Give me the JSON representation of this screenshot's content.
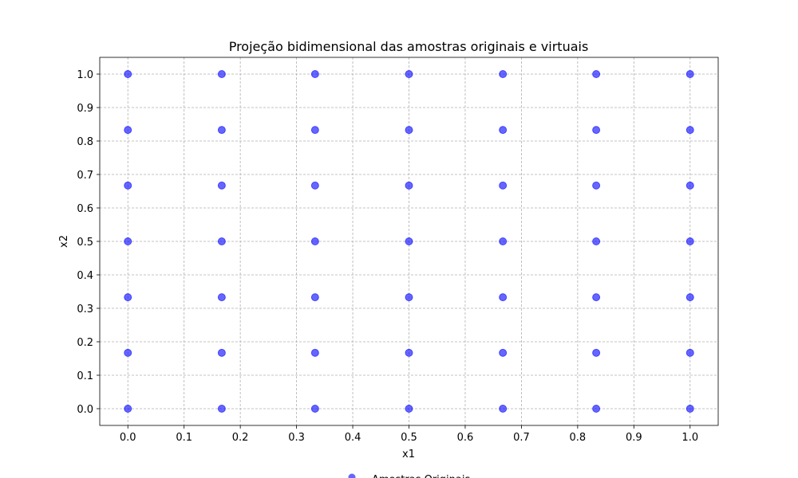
{
  "chart_data": {
    "type": "scatter",
    "title": "Projeção bidimensional das amostras originais e virtuais",
    "x_label": "x1",
    "y_label": "x2",
    "series": [
      {
        "name": "Amostras Originais",
        "color": "#0000ff",
        "x": [
          0,
          0,
          0,
          0,
          0,
          0,
          0,
          0.167,
          0.167,
          0.167,
          0.167,
          0.167,
          0.167,
          0.167,
          0.333,
          0.333,
          0.333,
          0.333,
          0.333,
          0.333,
          0.333,
          0.5,
          0.5,
          0.5,
          0.5,
          0.5,
          0.5,
          0.5,
          0.667,
          0.667,
          0.667,
          0.667,
          0.667,
          0.667,
          0.667,
          0.833,
          0.833,
          0.833,
          0.833,
          0.833,
          0.833,
          0.833,
          1,
          1,
          1,
          1,
          1,
          1,
          1
        ],
        "values": [
          0,
          0.167,
          0.333,
          0.5,
          0.667,
          0.833,
          1,
          0,
          0.167,
          0.333,
          0.5,
          0.667,
          0.833,
          1,
          0,
          0.167,
          0.333,
          0.5,
          0.667,
          0.833,
          1,
          0,
          0.167,
          0.333,
          0.5,
          0.667,
          0.833,
          1,
          0,
          0.167,
          0.333,
          0.5,
          0.667,
          0.833,
          1,
          0,
          0.167,
          0.333,
          0.5,
          0.667,
          0.833,
          1,
          0,
          0.167,
          0.333,
          0.5,
          0.667,
          0.833,
          1
        ]
      }
    ],
    "xlim": [
      -0.05,
      1.05
    ],
    "ylim": [
      -0.05,
      1.05
    ],
    "xticks": [
      {
        "value": 0,
        "label": "0.0"
      },
      0.1,
      0.2,
      0.3,
      0.4,
      0.5,
      0.6,
      0.7,
      0.8,
      0.9,
      {
        "value": 1,
        "label": "1.0"
      }
    ],
    "yticks": [
      {
        "value": 0,
        "label": "0.0"
      },
      0.1,
      0.2,
      0.3,
      0.4,
      0.5,
      0.6,
      0.7,
      0.8,
      0.9,
      {
        "value": 1,
        "label": "1.0"
      }
    ],
    "grid": true,
    "legend": "bottom"
  }
}
